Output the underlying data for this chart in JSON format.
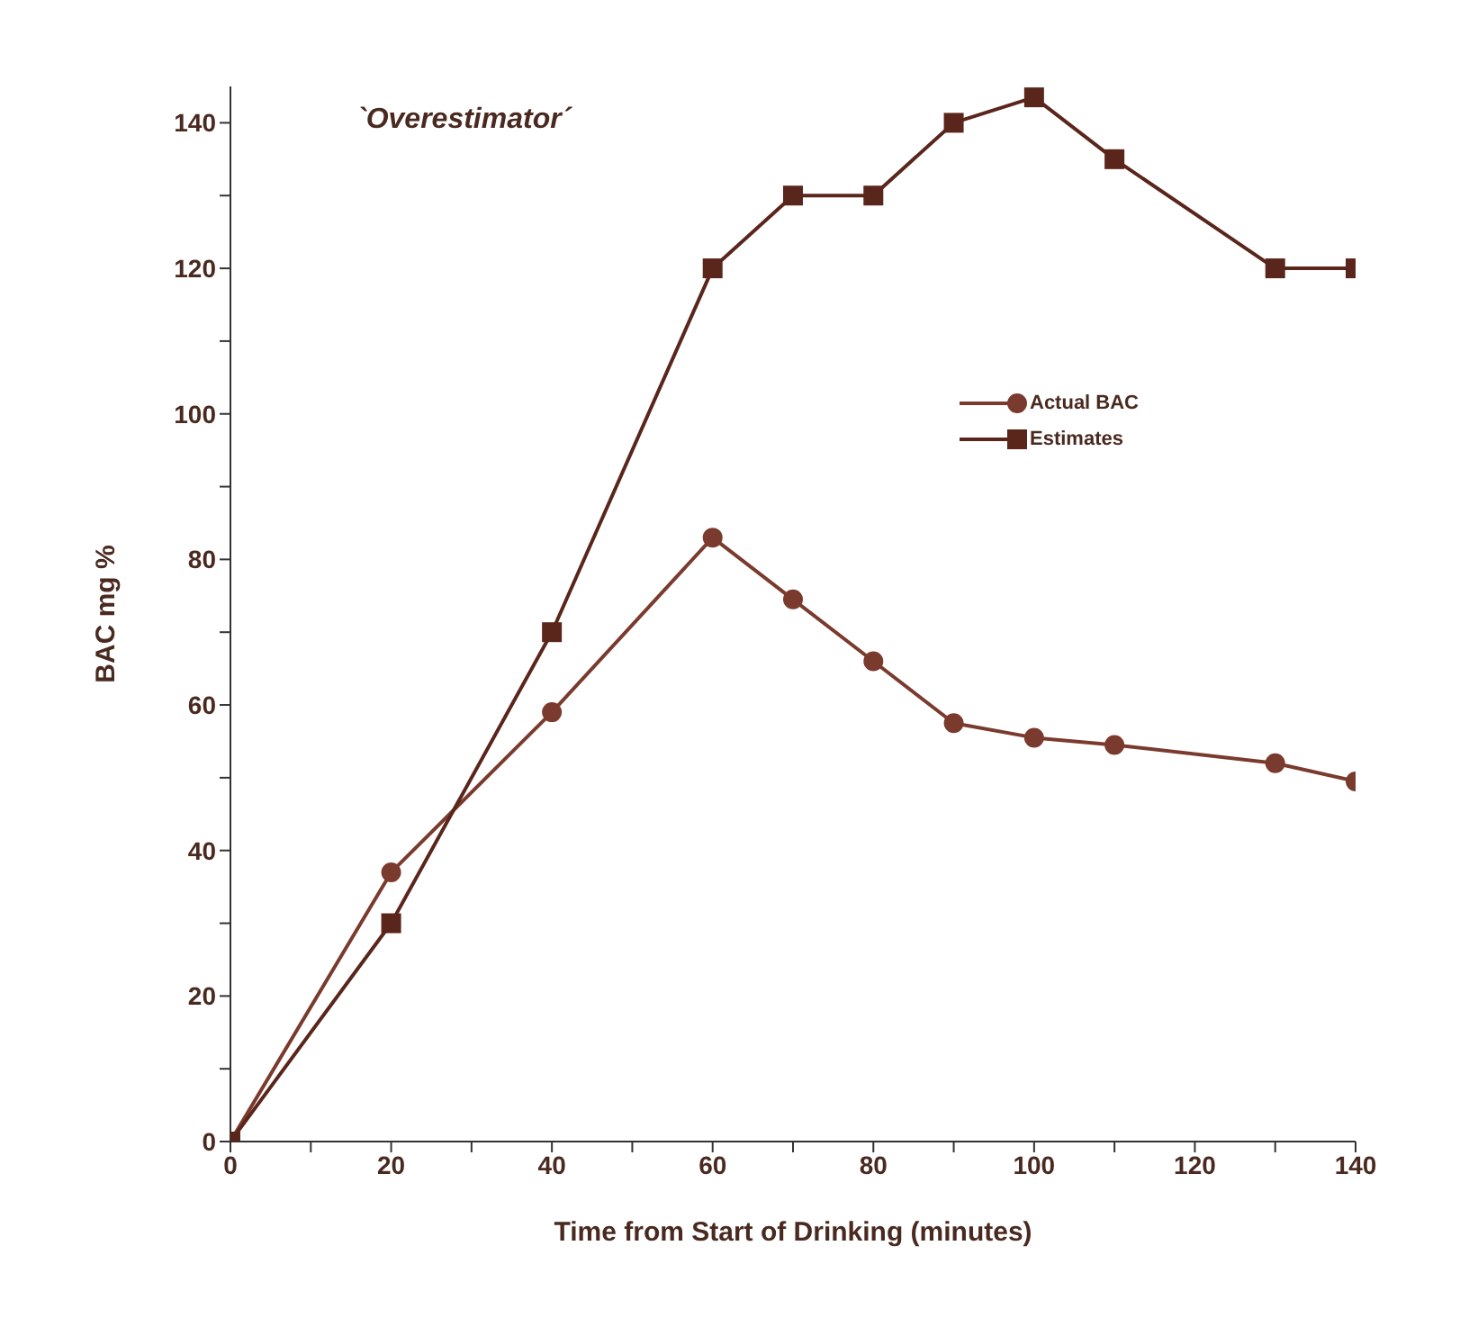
{
  "chart_data": {
    "type": "line",
    "xlabel": "Time from Start of Drinking (minutes)",
    "ylabel": "BAC mg %",
    "annotations": [
      "`Overestimator´"
    ],
    "xlim": [
      0,
      140
    ],
    "ylim": [
      0,
      145
    ],
    "xticks": [
      0,
      {
        "value": 10,
        "label": null
      },
      20,
      {
        "value": 30,
        "label": null
      },
      40,
      {
        "value": 50,
        "label": null
      },
      60,
      {
        "value": 70,
        "label": null
      },
      80,
      {
        "value": 90,
        "label": null
      },
      100,
      {
        "value": 110,
        "label": null
      },
      120,
      {
        "value": 130,
        "label": null
      },
      140
    ],
    "yticks": [
      0,
      {
        "value": 10,
        "label": null
      },
      20,
      {
        "value": 30,
        "label": null
      },
      40,
      {
        "value": 50,
        "label": null
      },
      60,
      {
        "value": 70,
        "label": null
      },
      80,
      {
        "value": 90,
        "label": null
      },
      100,
      {
        "value": 110,
        "label": null
      },
      120,
      {
        "value": 130,
        "label": null
      },
      140
    ],
    "legend": "top right",
    "line_style": "solid",
    "series": [
      {
        "name": "Actual BAC",
        "color": "#7a3b2e",
        "marker": "circle",
        "x": [
          0,
          20,
          40,
          60,
          70,
          80,
          90,
          100,
          110,
          130,
          140
        ],
        "values": [
          0,
          37,
          59,
          83,
          74.5,
          66,
          57.5,
          55.5,
          54.5,
          52,
          49.5
        ]
      },
      {
        "name": "Estimates",
        "color": "#5a261c",
        "marker": "square",
        "x": [
          0,
          20,
          40,
          60,
          70,
          80,
          90,
          100,
          110,
          130,
          140
        ],
        "values": [
          0,
          30,
          70,
          120,
          130,
          130,
          140,
          143.5,
          135,
          120,
          120
        ]
      }
    ]
  }
}
